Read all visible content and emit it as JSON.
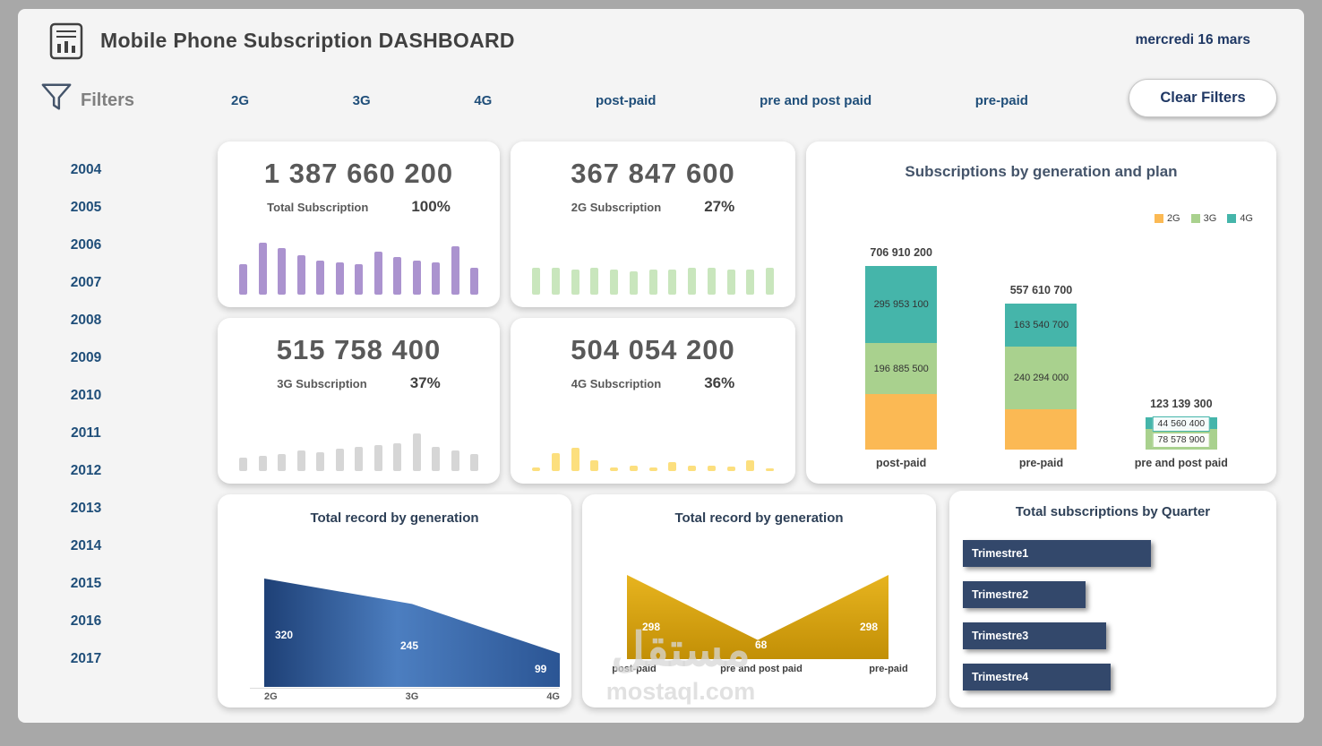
{
  "header": {
    "title": "Mobile Phone Subscription DASHBOARD",
    "date": "mercredi 16 mars"
  },
  "filters": {
    "label": "Filters",
    "items": [
      "2G",
      "3G",
      "4G",
      "post-paid",
      "pre and post paid",
      "pre-paid"
    ],
    "clear_label": "Clear Filters"
  },
  "years": [
    "2004",
    "2005",
    "2006",
    "2007",
    "2008",
    "2009",
    "2010",
    "2011",
    "2012",
    "2013",
    "2014",
    "2015",
    "2016",
    "2017"
  ],
  "kpis": [
    {
      "value": "1 387 660 200",
      "label": "Total Subscription",
      "percent": "100%",
      "bar_color": "#ab93cf",
      "spark": [
        34,
        58,
        52,
        44,
        38,
        36,
        34,
        48,
        42,
        38,
        36,
        54,
        30
      ]
    },
    {
      "value": "367 847 600",
      "label": "2G Subscription",
      "percent": "27%",
      "bar_color": "#c9e6bd",
      "spark": [
        30,
        30,
        28,
        30,
        28,
        26,
        28,
        28,
        30,
        30,
        28,
        28,
        30
      ]
    },
    {
      "value": "515 758 400",
      "label": "3G Subscription",
      "percent": "37%",
      "bar_color": "#d6d6d6",
      "spark": [
        15,
        17,
        19,
        23,
        21,
        25,
        27,
        29,
        31,
        42,
        27,
        23,
        19
      ]
    },
    {
      "value": "504 054 200",
      "label": "4G Subscription",
      "percent": "36%",
      "bar_color": "#fcdf7e",
      "spark": [
        4,
        20,
        26,
        12,
        4,
        6,
        4,
        10,
        6,
        6,
        5,
        12,
        3
      ]
    }
  ],
  "chart_data": [
    {
      "type": "bar",
      "stacked": true,
      "title": "Subscriptions by generation and plan",
      "legend_position": "top-right",
      "colors": {
        "2G": "#fbb954",
        "3G": "#a9d18e",
        "4G": "#45b5aa"
      },
      "legend": [
        {
          "name": "2G",
          "color": "#fbb954"
        },
        {
          "name": "3G",
          "color": "#a9d18e"
        },
        {
          "name": "4G",
          "color": "#45b5aa"
        }
      ],
      "bars": [
        {
          "category": "post-paid",
          "total": 706910200,
          "total_label": "706 910 200",
          "segments": [
            {
              "series": "4G",
              "value": 295953100,
              "label": "295 953 100"
            },
            {
              "series": "3G",
              "value": 196885500,
              "label": "196 885 500"
            },
            {
              "series": "2G",
              "value": 214071600,
              "label": ""
            }
          ]
        },
        {
          "category": "pre-paid",
          "total": 557610700,
          "total_label": "557 610 700",
          "segments": [
            {
              "series": "4G",
              "value": 163540700,
              "label": "163 540 700"
            },
            {
              "series": "3G",
              "value": 240294000,
              "label": "240 294 000"
            },
            {
              "series": "2G",
              "value": 153776000,
              "label": ""
            }
          ]
        },
        {
          "category": "pre and post paid",
          "total": 123139300,
          "total_label": "123 139 300",
          "segments": [
            {
              "series": "4G",
              "value": 44560400,
              "label": "44 560 400"
            },
            {
              "series": "3G",
              "value": 78578900,
              "label": "78 578 900"
            }
          ]
        }
      ]
    },
    {
      "type": "area",
      "title": "Total record by generation",
      "categories": [
        "2G",
        "3G",
        "4G"
      ],
      "values": [
        320,
        245,
        99
      ],
      "fill_colors": [
        "#1e4076",
        "#4c7ec0",
        "#2b5594"
      ]
    },
    {
      "type": "area",
      "title": "Total record by generation",
      "categories": [
        "post-paid",
        "pre and post paid",
        "pre-paid"
      ],
      "values": [
        298,
        68,
        298
      ],
      "fill_colors": [
        "#e7b41f",
        "#c28f06"
      ]
    }
  ],
  "quarter_panel": {
    "title": "Total subscriptions by Quarter",
    "buttons": [
      "Trimestre1",
      "Trimestre2",
      "Trimestre3",
      "Trimestre4"
    ]
  },
  "watermark": {
    "line1": "مستقل",
    "line2": "mostaql.com"
  }
}
